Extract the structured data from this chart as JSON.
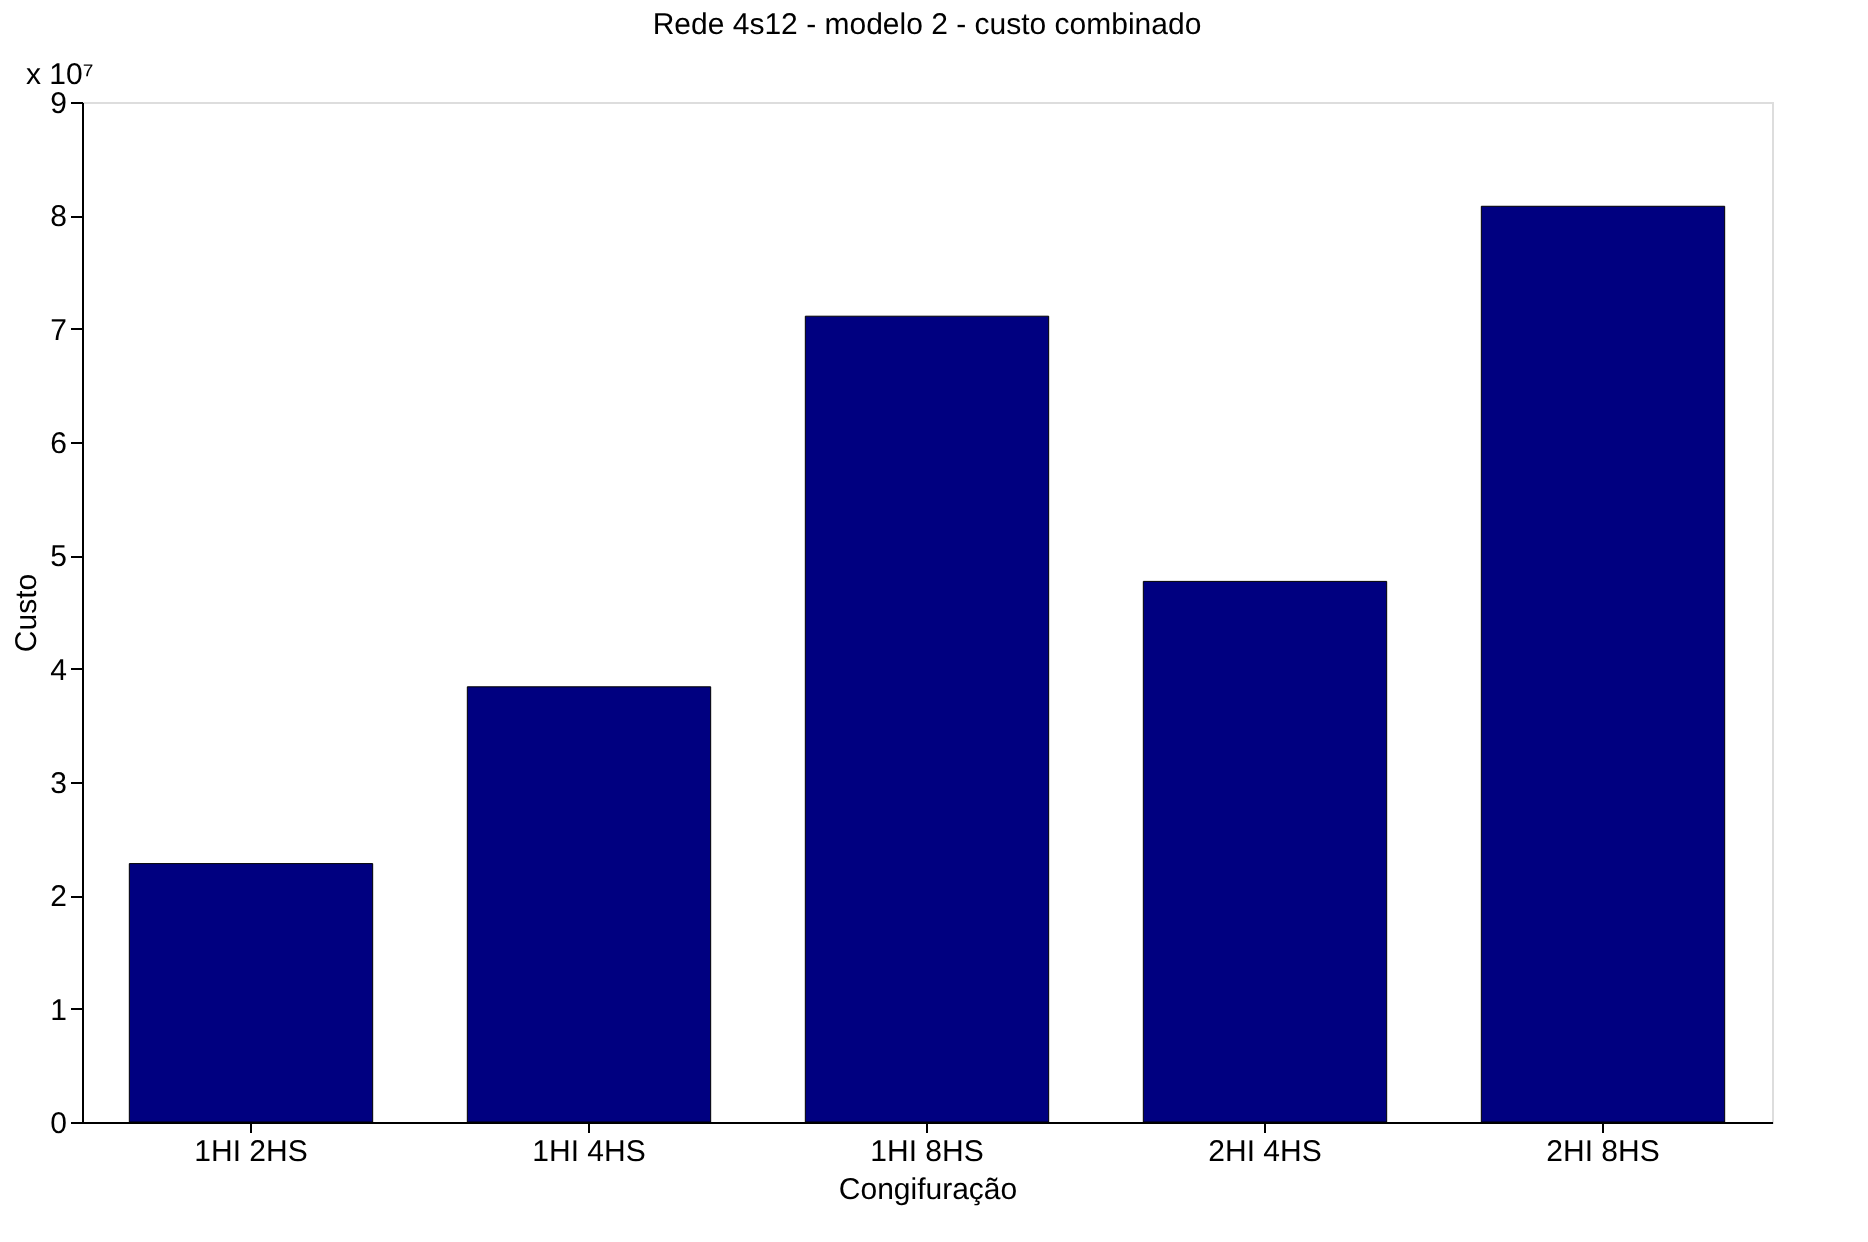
{
  "chart_data": {
    "type": "bar",
    "title": "Rede 4s12 - modelo 2 - custo combinado",
    "xlabel": "Congifuração",
    "ylabel": "Custo",
    "categories": [
      "1HI 2HS",
      "1HI 4HS",
      "1HI 8HS",
      "2HI 4HS",
      "2HI 8HS"
    ],
    "values": [
      2.28,
      3.84,
      7.11,
      4.77,
      8.08
    ],
    "color": "#000080",
    "ylim": [
      0,
      9
    ],
    "yticks": [
      0,
      1,
      2,
      3,
      4,
      5,
      6,
      7,
      8,
      9
    ],
    "grid": false,
    "annotations": [
      "x 10⁷"
    ]
  }
}
